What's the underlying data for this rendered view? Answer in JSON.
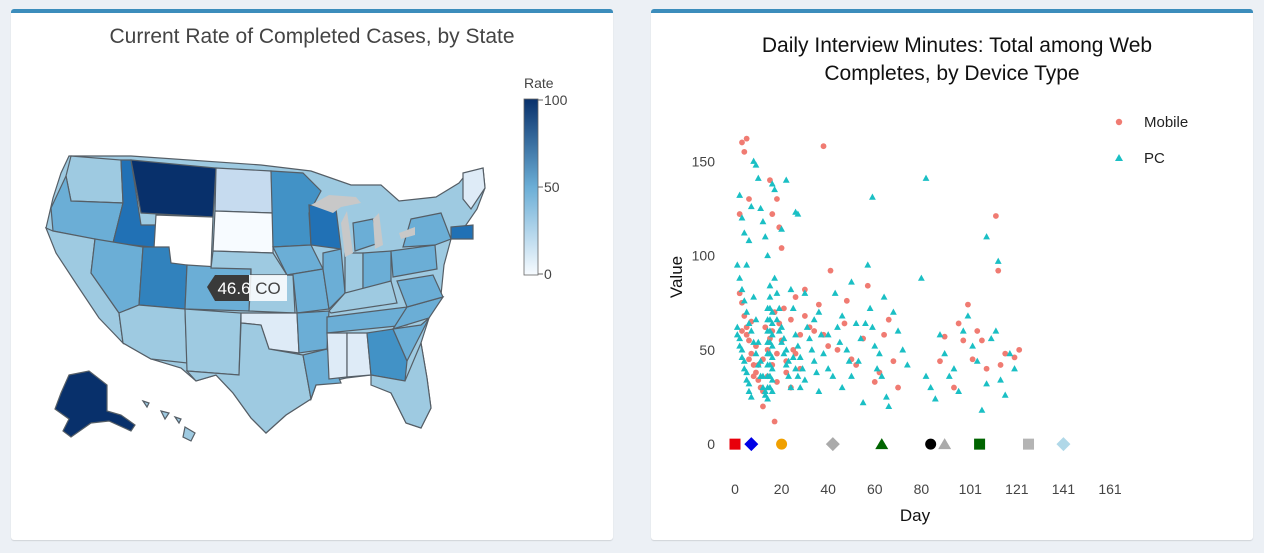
{
  "colors": {
    "panel_border": "#3c8dbc",
    "mobile": "#f07b72",
    "pc": "#1abfc4",
    "rate_low": "#f7fbff",
    "rate_high": "#08306b"
  },
  "map": {
    "title": "Current Rate of Completed Cases, by State",
    "colorbar": {
      "title": "Rate",
      "ticks": [
        "100",
        "50",
        "0"
      ]
    },
    "tooltip": {
      "value": "46.6",
      "state": "CO"
    }
  },
  "chart_data": {
    "type": "scatter",
    "title_lines": [
      "Daily Interview Minutes: Total among Web",
      "Completes, by Device Type"
    ],
    "xlabel": "Day",
    "ylabel": "Value",
    "xlim": [
      0,
      170
    ],
    "ylim": [
      -10,
      165
    ],
    "x_tick_labels": [
      "0",
      "20",
      "40",
      "60",
      "80",
      "101",
      "121",
      "141",
      "161"
    ],
    "x_tick_values": [
      0,
      20,
      40,
      60,
      80,
      101,
      121,
      141,
      161
    ],
    "y_tick_labels": [
      "0",
      "50",
      "100",
      "150"
    ],
    "y_tick_values": [
      0,
      50,
      100,
      150
    ],
    "legend": [
      "Mobile",
      "PC"
    ],
    "series": [
      {
        "name": "Mobile",
        "marker": "circle",
        "points": [
          [
            2,
            122
          ],
          [
            3,
            160
          ],
          [
            4,
            155
          ],
          [
            5,
            162
          ],
          [
            6,
            130
          ],
          [
            2,
            80
          ],
          [
            3,
            75
          ],
          [
            4,
            68
          ],
          [
            5,
            62
          ],
          [
            6,
            55
          ],
          [
            7,
            48
          ],
          [
            8,
            42
          ],
          [
            9,
            38
          ],
          [
            10,
            34
          ],
          [
            11,
            30
          ],
          [
            12,
            28
          ],
          [
            3,
            60
          ],
          [
            5,
            58
          ],
          [
            7,
            65
          ],
          [
            9,
            52
          ],
          [
            12,
            45
          ],
          [
            14,
            50
          ],
          [
            15,
            56
          ],
          [
            16,
            60
          ],
          [
            17,
            70
          ],
          [
            18,
            48
          ],
          [
            19,
            64
          ],
          [
            20,
            55
          ],
          [
            21,
            72
          ],
          [
            22,
            44
          ],
          [
            24,
            66
          ],
          [
            25,
            50
          ],
          [
            26,
            78
          ],
          [
            28,
            58
          ],
          [
            30,
            82
          ],
          [
            32,
            62
          ],
          [
            34,
            60
          ],
          [
            36,
            74
          ],
          [
            38,
            58
          ],
          [
            40,
            52
          ],
          [
            41,
            92
          ],
          [
            44,
            50
          ],
          [
            47,
            64
          ],
          [
            48,
            76
          ],
          [
            50,
            45
          ],
          [
            52,
            42
          ],
          [
            55,
            56
          ],
          [
            57,
            84
          ],
          [
            60,
            33
          ],
          [
            62,
            38
          ],
          [
            64,
            58
          ],
          [
            66,
            66
          ],
          [
            68,
            44
          ],
          [
            70,
            30
          ],
          [
            38,
            158
          ],
          [
            15,
            140
          ],
          [
            16,
            122
          ],
          [
            18,
            130
          ],
          [
            19,
            115
          ],
          [
            20,
            104
          ],
          [
            12,
            20
          ],
          [
            17,
            12
          ],
          [
            88,
            44
          ],
          [
            90,
            57
          ],
          [
            94,
            30
          ],
          [
            96,
            64
          ],
          [
            98,
            55
          ],
          [
            100,
            74
          ],
          [
            102,
            45
          ],
          [
            104,
            60
          ],
          [
            106,
            55
          ],
          [
            108,
            40
          ],
          [
            112,
            121
          ],
          [
            113,
            92
          ],
          [
            114,
            42
          ],
          [
            116,
            48
          ],
          [
            120,
            46
          ],
          [
            122,
            50
          ],
          [
            6,
            45
          ],
          [
            8,
            36
          ],
          [
            10,
            42
          ],
          [
            13,
            62
          ],
          [
            14,
            36
          ],
          [
            16,
            42
          ],
          [
            18,
            33
          ],
          [
            22,
            38
          ],
          [
            24,
            30
          ],
          [
            26,
            48
          ],
          [
            28,
            40
          ],
          [
            30,
            68
          ]
        ]
      },
      {
        "name": "PC",
        "marker": "triangle",
        "points": [
          [
            2,
            132
          ],
          [
            3,
            120
          ],
          [
            4,
            112
          ],
          [
            5,
            95
          ],
          [
            6,
            108
          ],
          [
            7,
            126
          ],
          [
            8,
            150
          ],
          [
            9,
            148
          ],
          [
            10,
            141
          ],
          [
            11,
            125
          ],
          [
            12,
            118
          ],
          [
            13,
            110
          ],
          [
            14,
            100
          ],
          [
            16,
            138
          ],
          [
            17,
            135
          ],
          [
            20,
            114
          ],
          [
            22,
            140
          ],
          [
            26,
            123
          ],
          [
            27,
            122
          ],
          [
            59,
            131
          ],
          [
            82,
            141
          ],
          [
            108,
            110
          ],
          [
            113,
            97
          ],
          [
            1,
            95
          ],
          [
            2,
            88
          ],
          [
            3,
            82
          ],
          [
            4,
            76
          ],
          [
            5,
            70
          ],
          [
            6,
            64
          ],
          [
            1,
            58
          ],
          [
            2,
            52
          ],
          [
            3,
            46
          ],
          [
            4,
            40
          ],
          [
            5,
            34
          ],
          [
            6,
            28
          ],
          [
            7,
            25
          ],
          [
            1,
            62
          ],
          [
            2,
            56
          ],
          [
            3,
            50
          ],
          [
            4,
            44
          ],
          [
            5,
            38
          ],
          [
            6,
            32
          ],
          [
            7,
            60
          ],
          [
            8,
            54
          ],
          [
            9,
            48
          ],
          [
            10,
            42
          ],
          [
            11,
            36
          ],
          [
            12,
            30
          ],
          [
            13,
            26
          ],
          [
            14,
            72
          ],
          [
            14,
            66
          ],
          [
            14,
            60
          ],
          [
            14,
            54
          ],
          [
            14,
            48
          ],
          [
            14,
            42
          ],
          [
            14,
            36
          ],
          [
            14,
            30
          ],
          [
            14,
            24
          ],
          [
            15,
            84
          ],
          [
            15,
            78
          ],
          [
            15,
            72
          ],
          [
            15,
            66
          ],
          [
            15,
            60
          ],
          [
            15,
            54
          ],
          [
            15,
            48
          ],
          [
            15,
            42
          ],
          [
            15,
            36
          ],
          [
            15,
            30
          ],
          [
            16,
            70
          ],
          [
            16,
            64
          ],
          [
            16,
            58
          ],
          [
            16,
            52
          ],
          [
            16,
            46
          ],
          [
            16,
            40
          ],
          [
            16,
            34
          ],
          [
            16,
            28
          ],
          [
            18,
            66
          ],
          [
            19,
            60
          ],
          [
            20,
            54
          ],
          [
            21,
            48
          ],
          [
            22,
            42
          ],
          [
            23,
            36
          ],
          [
            24,
            30
          ],
          [
            25,
            72
          ],
          [
            26,
            58
          ],
          [
            27,
            52
          ],
          [
            28,
            46
          ],
          [
            29,
            40
          ],
          [
            30,
            34
          ],
          [
            31,
            62
          ],
          [
            32,
            56
          ],
          [
            33,
            50
          ],
          [
            34,
            44
          ],
          [
            35,
            38
          ],
          [
            36,
            70
          ],
          [
            37,
            58
          ],
          [
            38,
            48
          ],
          [
            40,
            40
          ],
          [
            42,
            36
          ],
          [
            44,
            62
          ],
          [
            45,
            54
          ],
          [
            46,
            30
          ],
          [
            48,
            50
          ],
          [
            49,
            44
          ],
          [
            50,
            86
          ],
          [
            52,
            64
          ],
          [
            54,
            56
          ],
          [
            55,
            22
          ],
          [
            57,
            95
          ],
          [
            58,
            72
          ],
          [
            59,
            62
          ],
          [
            60,
            52
          ],
          [
            61,
            40
          ],
          [
            63,
            36
          ],
          [
            65,
            25
          ],
          [
            66,
            20
          ],
          [
            68,
            70
          ],
          [
            70,
            60
          ],
          [
            72,
            50
          ],
          [
            74,
            42
          ],
          [
            80,
            88
          ],
          [
            82,
            36
          ],
          [
            84,
            30
          ],
          [
            86,
            24
          ],
          [
            88,
            58
          ],
          [
            90,
            48
          ],
          [
            92,
            36
          ],
          [
            94,
            40
          ],
          [
            96,
            28
          ],
          [
            98,
            60
          ],
          [
            100,
            68
          ],
          [
            102,
            52
          ],
          [
            104,
            44
          ],
          [
            106,
            18
          ],
          [
            108,
            32
          ],
          [
            110,
            56
          ],
          [
            112,
            60
          ],
          [
            114,
            34
          ],
          [
            116,
            26
          ],
          [
            118,
            48
          ],
          [
            120,
            40
          ],
          [
            8,
            78
          ],
          [
            9,
            66
          ],
          [
            10,
            54
          ],
          [
            11,
            44
          ],
          [
            12,
            36
          ],
          [
            13,
            28
          ],
          [
            17,
            88
          ],
          [
            18,
            80
          ],
          [
            19,
            72
          ],
          [
            20,
            62
          ],
          [
            21,
            56
          ],
          [
            22,
            50
          ],
          [
            23,
            44
          ],
          [
            24,
            82
          ],
          [
            25,
            46
          ],
          [
            26,
            40
          ],
          [
            27,
            36
          ],
          [
            28,
            30
          ],
          [
            30,
            80
          ],
          [
            34,
            66
          ],
          [
            36,
            28
          ],
          [
            40,
            58
          ],
          [
            43,
            80
          ],
          [
            46,
            68
          ],
          [
            50,
            36
          ],
          [
            53,
            44
          ],
          [
            56,
            64
          ],
          [
            62,
            48
          ],
          [
            64,
            78
          ]
        ]
      }
    ],
    "annotation_markers": [
      {
        "x": 0,
        "shape": "square",
        "color": "#e8000b"
      },
      {
        "x": 7,
        "shape": "diamond",
        "color": "#0000e6"
      },
      {
        "x": 20,
        "shape": "circle",
        "color": "#f0a000"
      },
      {
        "x": 42,
        "shape": "diamond",
        "color": "#aaaaaa"
      },
      {
        "x": 63,
        "shape": "triangle",
        "color": "#006400"
      },
      {
        "x": 84,
        "shape": "circle",
        "color": "#000000"
      },
      {
        "x": 90,
        "shape": "triangle",
        "color": "#aaaaaa"
      },
      {
        "x": 105,
        "shape": "square",
        "color": "#006400"
      },
      {
        "x": 126,
        "shape": "square",
        "color": "#b4b4b4"
      },
      {
        "x": 141,
        "shape": "diamond",
        "color": "#b0d8e8"
      }
    ]
  }
}
